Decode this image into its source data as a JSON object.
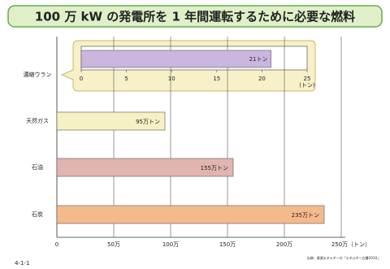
{
  "chart_data": [
    {
      "type": "bar",
      "title": "100 万 kW の発電所を 1 年間運転するために必要な燃料",
      "categories": [
        "濃縮ウラン",
        "天然ガス",
        "石油",
        "石炭"
      ],
      "values": [
        null,
        95,
        155,
        235
      ],
      "value_labels": [
        null,
        "95万トン",
        "155万トン",
        "235万トン"
      ],
      "colors": [
        null,
        "#f6f0c4",
        "#e2b4b0",
        "#f5ba8c"
      ],
      "xlim": [
        0,
        250
      ],
      "xticks": [
        0,
        {
          "value": 50,
          "label": "50万"
        },
        {
          "value": 100,
          "label": "100万"
        },
        {
          "value": 150,
          "label": "150万"
        },
        {
          "value": 200,
          "label": "200万"
        },
        {
          "value": 250,
          "label": "250万（トン）"
        }
      ],
      "grid": true,
      "figure_number": "4-1-1",
      "source": "出典：資源エネルギー庁「エネルギー白書2010」"
    },
    {
      "type": "bar",
      "values": [
        21
      ],
      "value_labels": [
        "21トン"
      ],
      "color": "#cbb6de",
      "xlim": [
        0,
        25
      ],
      "xticks": [
        0,
        5,
        10,
        15,
        20,
        {
          "value": 25,
          "label": "25\n(トン)"
        }
      ]
    }
  ]
}
